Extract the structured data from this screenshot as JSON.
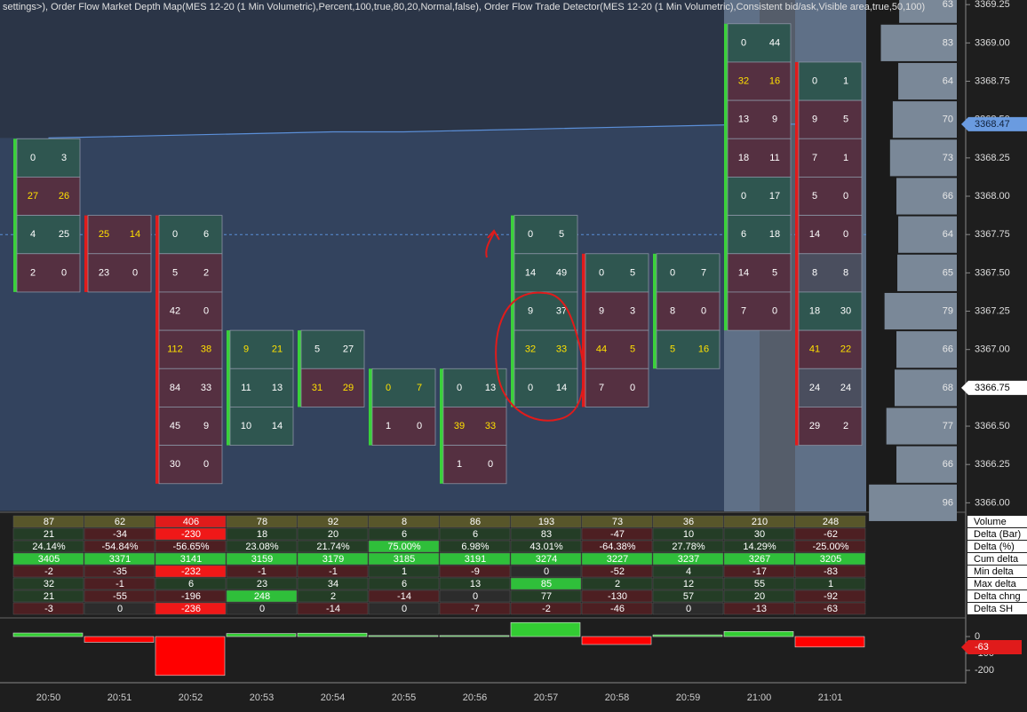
{
  "header": {
    "text": "settings>), Order Flow Market Depth Map(MES 12-20 (1 Min Volumetric),Percent,100,true,80,20,Normal,false), Order Flow Trade Detector(MES 12-20 (1 Min Volumetric),Consistent bid/ask,Visible area,true,50,100)"
  },
  "price_axis": {
    "ylim": [
      3365.95,
      3369.28
    ],
    "ticks": [
      {
        "value": 3369.25,
        "label": "3369.25"
      },
      {
        "value": 3369.0,
        "label": "3369.00"
      },
      {
        "value": 3368.75,
        "label": "3368.75"
      },
      {
        "value": 3368.5,
        "label": "3368.50"
      },
      {
        "value": 3368.25,
        "label": "3368.25"
      },
      {
        "value": 3368.0,
        "label": "3368.00"
      },
      {
        "value": 3367.75,
        "label": "3367.75"
      },
      {
        "value": 3367.5,
        "label": "3367.50"
      },
      {
        "value": 3367.25,
        "label": "3367.25"
      },
      {
        "value": 3367.0,
        "label": "3367.00"
      },
      {
        "value": 3366.75,
        "label": "3366.75"
      },
      {
        "value": 3366.5,
        "label": "3366.50"
      },
      {
        "value": 3366.25,
        "label": "3366.25"
      },
      {
        "value": 3366.0,
        "label": "3366.00"
      }
    ],
    "last_price": {
      "value": 3368.47,
      "label": "3368.47"
    },
    "marker": {
      "value": 3366.75,
      "label": "3366.75"
    }
  },
  "depth": {
    "values": [
      63,
      83,
      64,
      70,
      73,
      66,
      64,
      65,
      79,
      66,
      68,
      77,
      66,
      96
    ]
  },
  "vwap": {
    "values": [
      3368.38,
      3368.39,
      3368.4,
      3368.41,
      3368.42,
      3368.42,
      3368.43,
      3368.44,
      3368.45,
      3368.46,
      3368.47,
      3368.47
    ]
  },
  "dashed_level": 3367.75,
  "columns": [
    {
      "time": "20:50",
      "top_price": 3368.25,
      "highlight": 1,
      "cells": [
        [
          0,
          3
        ],
        [
          27,
          26
        ],
        [
          4,
          25
        ],
        [
          2,
          0
        ]
      ]
    },
    {
      "time": "20:51",
      "top_price": 3367.75,
      "highlight": 0,
      "cells": [
        [
          25,
          14
        ],
        [
          23,
          0
        ]
      ]
    },
    {
      "time": "20:52",
      "top_price": 3367.75,
      "highlight": 3,
      "cells": [
        [
          0,
          6
        ],
        [
          5,
          2
        ],
        [
          42,
          0
        ],
        [
          112,
          38
        ],
        [
          84,
          33
        ],
        [
          45,
          9
        ],
        [
          30,
          0
        ]
      ]
    },
    {
      "time": "20:53",
      "top_price": 3367.0,
      "highlight": 0,
      "cells": [
        [
          9,
          21
        ],
        [
          11,
          13
        ],
        [
          10,
          14
        ]
      ]
    },
    {
      "time": "20:54",
      "top_price": 3367.0,
      "highlight": 1,
      "cells": [
        [
          5,
          27
        ],
        [
          31,
          29
        ]
      ]
    },
    {
      "time": "20:55",
      "top_price": 3366.75,
      "highlight": 0,
      "cells": [
        [
          0,
          7
        ],
        [
          1,
          0
        ]
      ]
    },
    {
      "time": "20:56",
      "top_price": 3366.75,
      "highlight": 1,
      "cells": [
        [
          0,
          13
        ],
        [
          39,
          33
        ],
        [
          1,
          0
        ]
      ]
    },
    {
      "time": "20:57",
      "top_price": 3367.75,
      "highlight": 3,
      "cells": [
        [
          0,
          5
        ],
        [
          14,
          49
        ],
        [
          9,
          37
        ],
        [
          32,
          33
        ],
        [
          0,
          14
        ]
      ]
    },
    {
      "time": "20:58",
      "top_price": 3367.5,
      "highlight": 2,
      "cells": [
        [
          0,
          5
        ],
        [
          9,
          3
        ],
        [
          44,
          5
        ],
        [
          7,
          0
        ]
      ]
    },
    {
      "time": "20:59",
      "top_price": 3367.5,
      "highlight": 2,
      "cells": [
        [
          0,
          7
        ],
        [
          8,
          0
        ],
        [
          5,
          16
        ]
      ]
    },
    {
      "time": "21:00",
      "top_price": 3369.0,
      "highlight": 1,
      "cells": [
        [
          0,
          44
        ],
        [
          32,
          16
        ],
        [
          13,
          9
        ],
        [
          18,
          11
        ],
        [
          0,
          17
        ],
        [
          6,
          18
        ],
        [
          14,
          5
        ],
        [
          7,
          0
        ]
      ]
    },
    {
      "time": "21:01",
      "top_price": 3368.75,
      "highlight": 7,
      "cells": [
        [
          0,
          1
        ],
        [
          9,
          5
        ],
        [
          7,
          1
        ],
        [
          5,
          0
        ],
        [
          14,
          0
        ],
        [
          8,
          8
        ],
        [
          18,
          30
        ],
        [
          41,
          22
        ],
        [
          24,
          24
        ],
        [
          29,
          2
        ]
      ]
    }
  ],
  "table": {
    "labels": [
      "Volume",
      "Delta (Bar)",
      "Delta (%)",
      "Cum delta",
      "Min delta",
      "Max delta",
      "Delta chng",
      "Delta SH"
    ],
    "rows": [
      [
        87,
        62,
        406,
        78,
        92,
        8,
        86,
        193,
        73,
        36,
        210,
        248
      ],
      [
        21,
        -34,
        -230,
        18,
        20,
        6,
        6,
        83,
        -47,
        10,
        30,
        -62
      ],
      [
        "24.14%",
        "-54.84%",
        "-56.65%",
        "23.08%",
        "21.74%",
        "75.00%",
        "6.98%",
        "43.01%",
        "-64.38%",
        "27.78%",
        "14.29%",
        "-25.00%"
      ],
      [
        3405,
        3371,
        3141,
        3159,
        3179,
        3185,
        3191,
        3274,
        3227,
        3237,
        3267,
        3205
      ],
      [
        -2,
        -35,
        -232,
        -1,
        -1,
        1,
        -9,
        0,
        -52,
        4,
        -17,
        -83
      ],
      [
        32,
        -1,
        6,
        23,
        34,
        6,
        13,
        85,
        2,
        12,
        55,
        1
      ],
      [
        21,
        -55,
        -196,
        248,
        2,
        -14,
        0,
        77,
        -130,
        57,
        20,
        -92
      ],
      [
        -3,
        0,
        -236,
        0,
        -14,
        0,
        -7,
        -2,
        -46,
        0,
        -13,
        -63
      ]
    ]
  },
  "histogram": {
    "ylim": [
      -268,
      100
    ],
    "ticks": [
      0,
      -100,
      -200
    ],
    "last": {
      "value": -63,
      "label": "-63"
    }
  }
}
